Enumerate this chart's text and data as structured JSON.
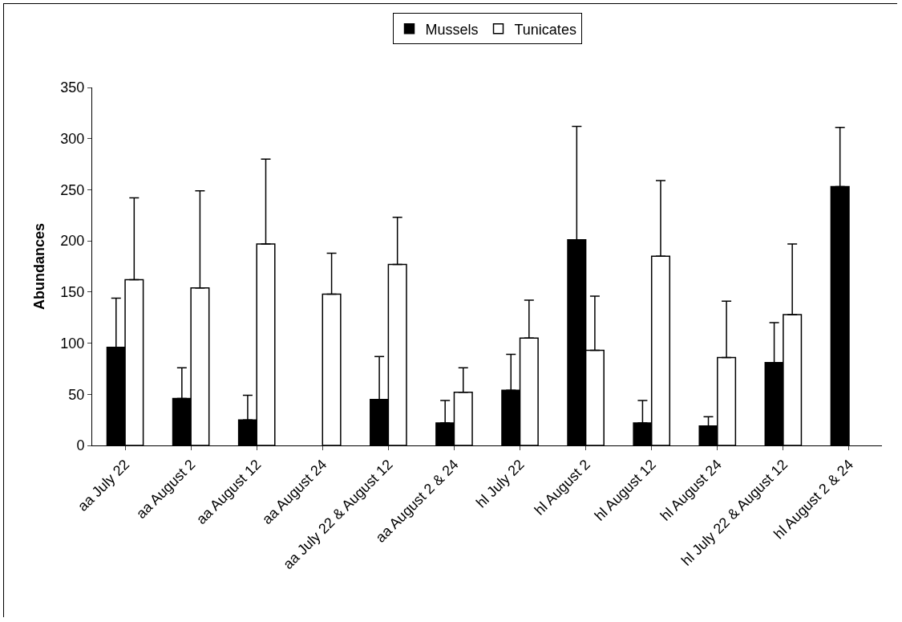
{
  "chart_data": {
    "type": "bar",
    "ylabel": "Abundances",
    "categories": [
      "aa July 22",
      "aa August 2",
      "aa August 12",
      "aa August 24",
      "aa July 22 & August 12",
      "aa August 2 & 24",
      "hl July 22",
      "hl August 2",
      "hl August 12",
      "hl August 24",
      "hl July 22 & August 12",
      "hl August 2 & 24"
    ],
    "series": [
      {
        "name": "Mussels",
        "color": "#000000",
        "values": [
          96,
          46,
          25,
          null,
          45,
          22,
          54,
          201,
          22,
          19,
          81,
          253
        ],
        "errors": [
          [
            96,
            144
          ],
          [
            46,
            76
          ],
          [
            25,
            49
          ],
          null,
          [
            45,
            87
          ],
          [
            22,
            44
          ],
          [
            54,
            89
          ],
          [
            201,
            312
          ],
          [
            22,
            44
          ],
          [
            19,
            28
          ],
          [
            81,
            120
          ],
          [
            253,
            311
          ]
        ]
      },
      {
        "name": "Tunicates",
        "color": "#ffffff",
        "values": [
          162,
          154,
          197,
          148,
          177,
          52,
          105,
          93,
          185,
          86,
          128,
          null
        ],
        "errors": [
          [
            162,
            242
          ],
          [
            154,
            249
          ],
          [
            197,
            280
          ],
          [
            148,
            188
          ],
          [
            177,
            223
          ],
          [
            52,
            76
          ],
          [
            105,
            142
          ],
          [
            93,
            146
          ],
          [
            185,
            259
          ],
          [
            86,
            141
          ],
          [
            128,
            197
          ],
          null
        ]
      }
    ],
    "ylim": [
      0,
      350
    ],
    "yticks": [
      0,
      50,
      100,
      150,
      200,
      250,
      300,
      350
    ],
    "grid": false,
    "legend": "top"
  }
}
